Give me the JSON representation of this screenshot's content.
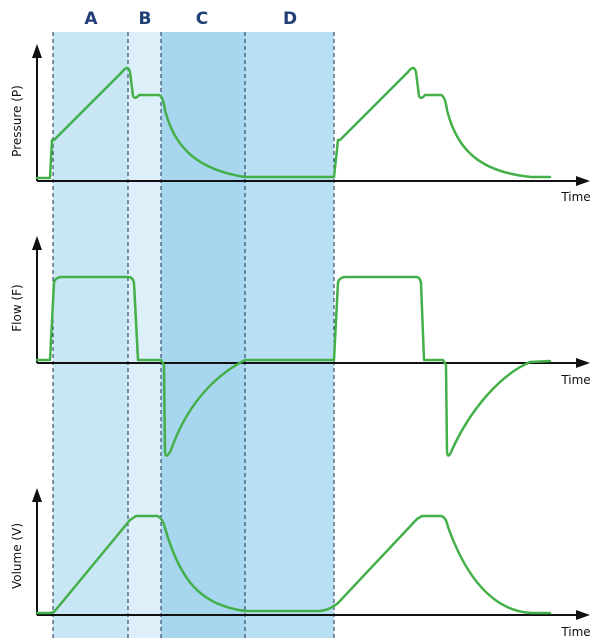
{
  "phases": [
    {
      "label": "A",
      "color": "#c9e6f4"
    },
    {
      "label": "B",
      "color": "#ddeff8"
    },
    {
      "label": "C",
      "color": "#a9d6ef"
    },
    {
      "label": "D",
      "color": "#b9dff3"
    }
  ],
  "phase_label_color": "#1f3f76",
  "curve_color": "#44b04a",
  "divider_color": "#1b2f57",
  "axis_color": "#111111",
  "panels": [
    {
      "id": "pressure",
      "ylabel": "Pressure (P)",
      "xlabel": "Time"
    },
    {
      "id": "flow",
      "ylabel": "Flow (F)",
      "xlabel": "Time"
    },
    {
      "id": "volume",
      "ylabel": "Volume (V)",
      "xlabel": "Time"
    }
  ]
}
